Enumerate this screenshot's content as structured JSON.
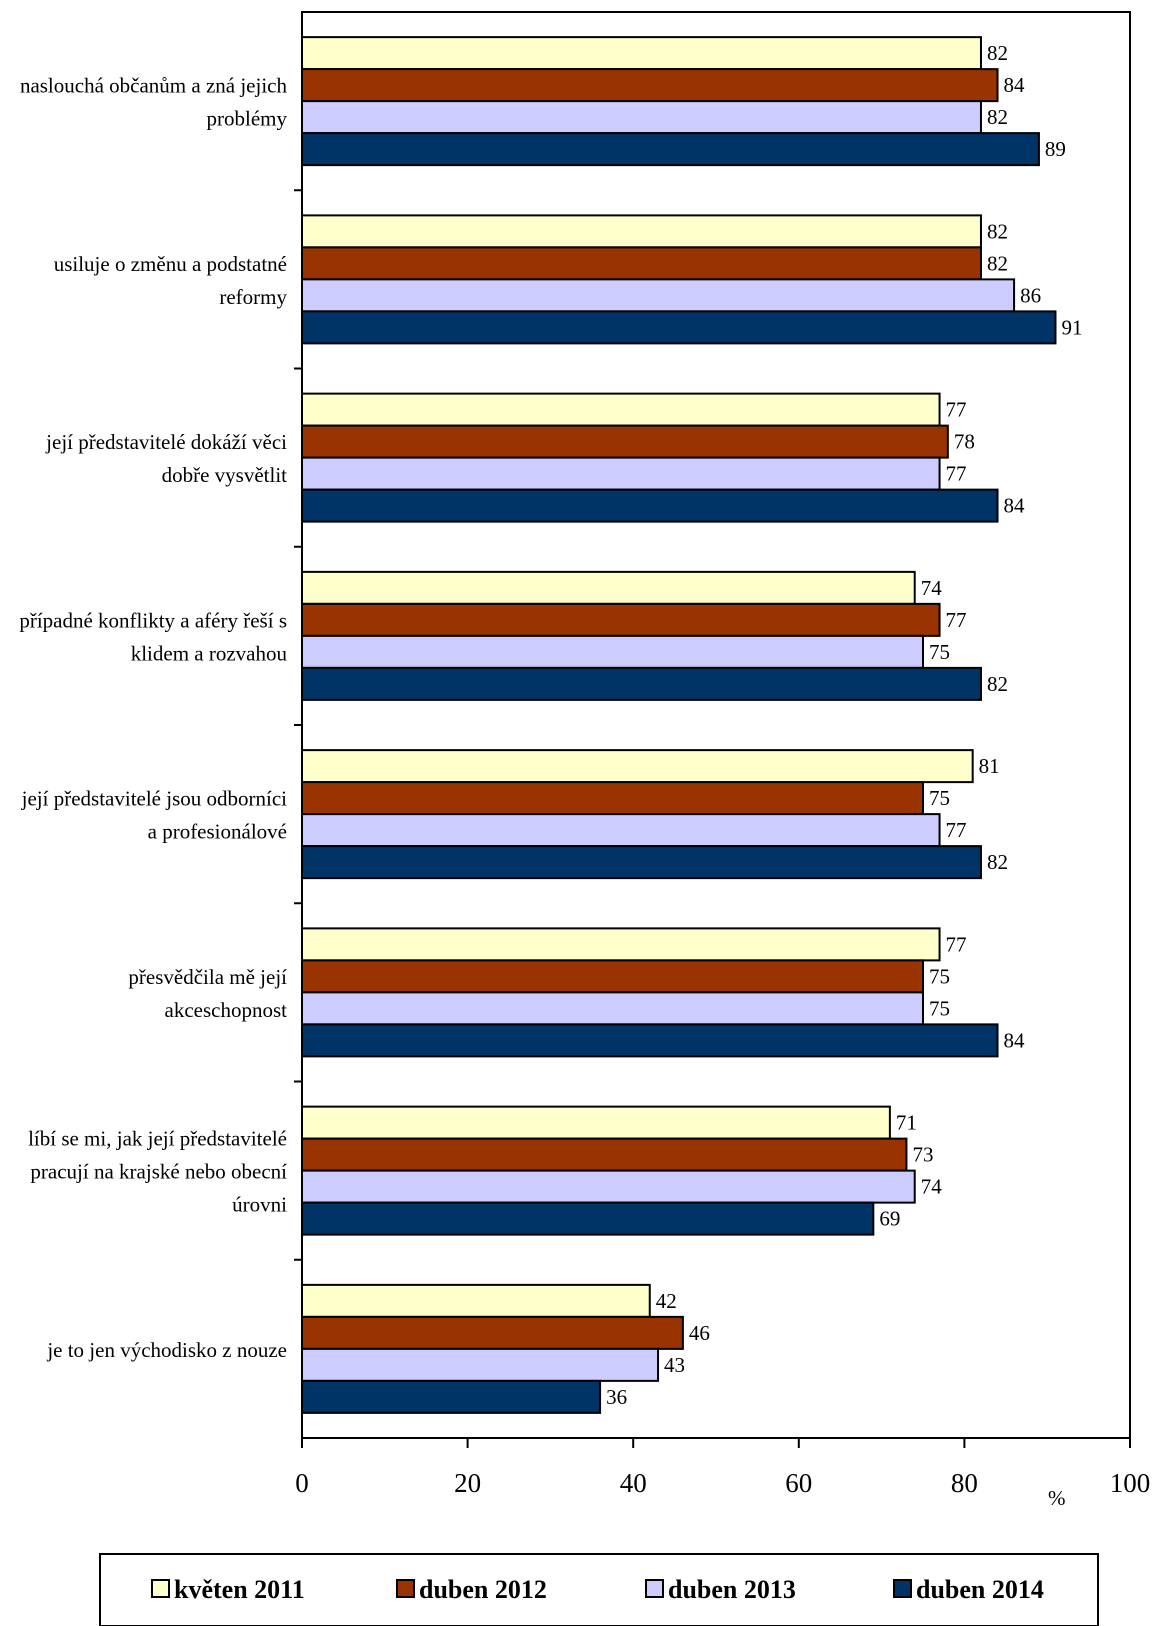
{
  "chart_data": {
    "type": "bar",
    "orientation": "horizontal",
    "categories": [
      [
        "naslouchá občanům a zná jejich",
        "problémy"
      ],
      [
        "usiluje o změnu a podstatné",
        "reformy"
      ],
      [
        "její představitelé dokáží věci",
        "dobře vysvětlit"
      ],
      [
        "případné konflikty a aféry řeší s",
        "klidem a rozvahou"
      ],
      [
        "její představitelé jsou odborníci",
        "a profesionálové"
      ],
      [
        "přesvědčila mě její",
        "akceschopnost"
      ],
      [
        "líbí se mi, jak její představitelé",
        "pracují na krajské nebo obecní",
        "úrovni"
      ],
      [
        "je to jen východisko z nouze"
      ]
    ],
    "series": [
      {
        "name": "květen 2011",
        "color": "#ffffcc",
        "values": [
          82,
          82,
          77,
          74,
          81,
          77,
          71,
          42
        ]
      },
      {
        "name": "duben 2012",
        "color": "#993300",
        "values": [
          84,
          82,
          78,
          77,
          75,
          75,
          73,
          46
        ]
      },
      {
        "name": "duben 2013",
        "color": "#ccccff",
        "values": [
          82,
          86,
          77,
          75,
          77,
          75,
          74,
          43
        ]
      },
      {
        "name": "duben 2014",
        "color": "#003366",
        "values": [
          89,
          91,
          84,
          82,
          82,
          84,
          69,
          36
        ]
      }
    ],
    "xlim": [
      0,
      100
    ],
    "xticks": [
      "0",
      "20",
      "40",
      "60",
      "80",
      "100"
    ],
    "unit": "%",
    "grid": false,
    "legend_position": "bottom"
  }
}
